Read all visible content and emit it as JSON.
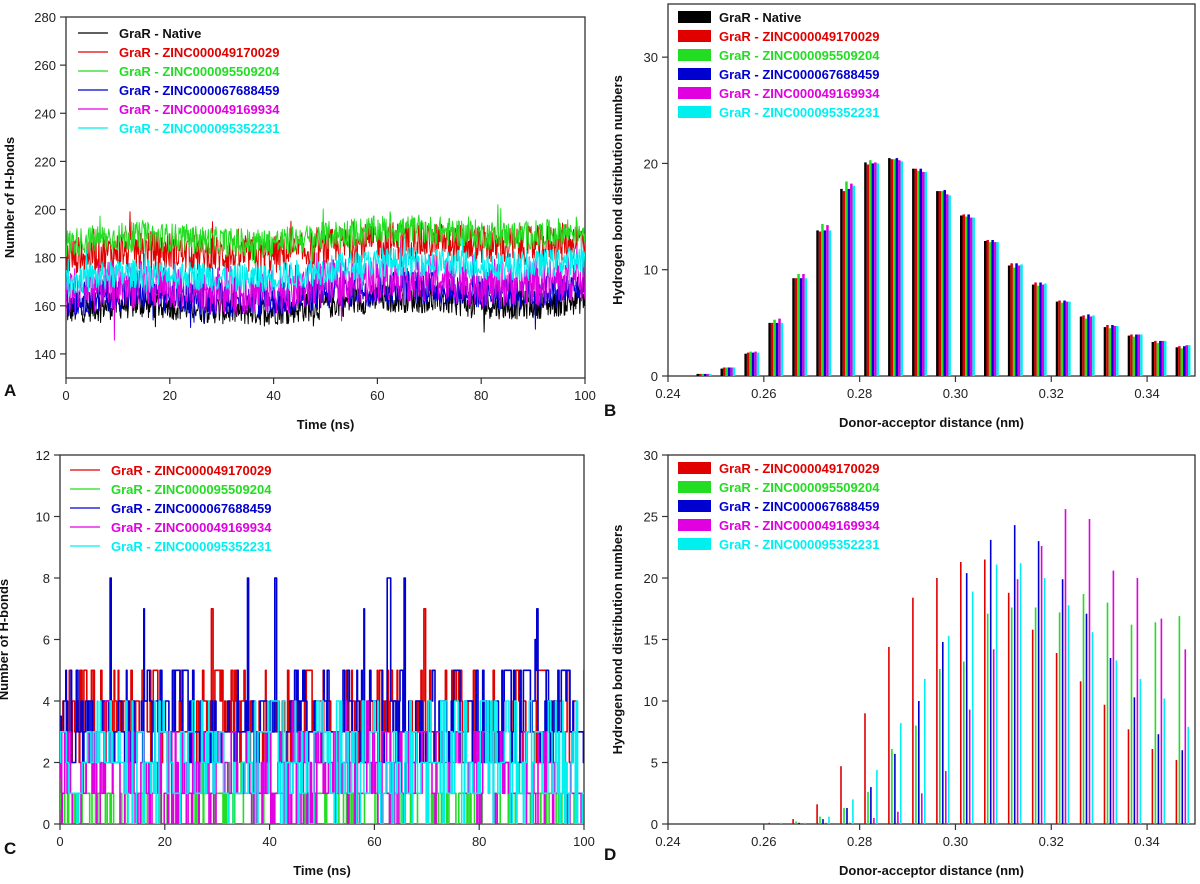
{
  "colors": {
    "Native": "#000000",
    "ZINC000049170029": "#e00000",
    "ZINC000095509204": "#22dd22",
    "ZINC000067688459": "#0000d0",
    "ZINC000049169934": "#e000e0",
    "ZINC000095352231": "#00f0f0"
  },
  "chart_data": [
    {
      "panel": "A",
      "type": "line",
      "title": "",
      "xlabel": "Time (ns)",
      "ylabel": "Number of H-bonds",
      "xlim": [
        0,
        100
      ],
      "ylim": [
        130,
        280
      ],
      "xticks": [
        0,
        20,
        40,
        60,
        80,
        100
      ],
      "yticks": [
        140,
        160,
        180,
        200,
        220,
        240,
        260,
        280
      ],
      "legend_position": "top-left",
      "series": [
        {
          "key": "Native",
          "name": "GraR - Native",
          "mean_start": 158,
          "mean_end": 163,
          "noise": 6
        },
        {
          "key": "ZINC000049170029",
          "name": "GraR - ZINC000049170029",
          "mean_start": 180,
          "mean_end": 188,
          "noise": 8
        },
        {
          "key": "ZINC000095509204",
          "name": "GraR - ZINC000095509204",
          "mean_start": 186,
          "mean_end": 192,
          "noise": 6
        },
        {
          "key": "ZINC000067688459",
          "name": "GraR - ZINC000067688459",
          "mean_start": 162,
          "mean_end": 168,
          "noise": 7
        },
        {
          "key": "ZINC000049169934",
          "name": "GraR - ZINC000049169934",
          "mean_start": 166,
          "mean_end": 172,
          "noise": 10
        },
        {
          "key": "ZINC000095352231",
          "name": "GraR - ZINC000095352231",
          "mean_start": 170,
          "mean_end": 180,
          "noise": 6
        }
      ]
    },
    {
      "panel": "B",
      "type": "bar",
      "title": "",
      "xlabel": "Donor-acceptor distance (nm)",
      "ylabel": "Hydrogen bond distribution numbers",
      "xlim": [
        0.24,
        0.35
      ],
      "ylim": [
        0,
        35
      ],
      "xticks": [
        "0.24",
        "0.26",
        "0.28",
        "0.30",
        "0.32",
        "0.34"
      ],
      "yticks": [
        0,
        10,
        20,
        30
      ],
      "legend_position": "top-left",
      "x": [
        0.2475,
        0.2525,
        0.2575,
        0.2625,
        0.2675,
        0.2725,
        0.2775,
        0.2825,
        0.2875,
        0.2925,
        0.2975,
        0.3025,
        0.3075,
        0.3125,
        0.3175,
        0.3225,
        0.3275,
        0.3325,
        0.3375,
        0.3425,
        0.3475
      ],
      "series": [
        {
          "key": "Native",
          "name": "GraR - Native",
          "values": [
            0.2,
            0.7,
            2.1,
            5.0,
            9.2,
            13.7,
            17.6,
            20.1,
            20.5,
            19.5,
            17.4,
            15.1,
            12.7,
            10.4,
            8.6,
            7.0,
            5.6,
            4.6,
            3.8,
            3.2,
            2.7
          ]
        },
        {
          "key": "ZINC000049170029",
          "name": "GraR - ZINC000049170029",
          "values": [
            0.2,
            0.8,
            2.2,
            5.0,
            9.2,
            13.6,
            17.4,
            19.9,
            20.4,
            19.5,
            17.4,
            15.2,
            12.8,
            10.6,
            8.8,
            7.1,
            5.7,
            4.8,
            3.9,
            3.3,
            2.8
          ]
        },
        {
          "key": "ZINC000095509204",
          "name": "GraR - ZINC000095509204",
          "values": [
            0.2,
            0.8,
            2.3,
            5.3,
            9.6,
            14.3,
            18.3,
            20.3,
            20.4,
            19.3,
            17.4,
            15.0,
            12.6,
            10.2,
            8.5,
            6.9,
            5.4,
            4.5,
            3.7,
            3.1,
            2.6
          ]
        },
        {
          "key": "ZINC000067688459",
          "name": "GraR - ZINC000067688459",
          "values": [
            0.2,
            0.8,
            2.2,
            5.0,
            9.2,
            13.7,
            17.6,
            20.0,
            20.5,
            19.5,
            17.5,
            15.2,
            12.8,
            10.6,
            8.8,
            7.1,
            5.8,
            4.8,
            3.9,
            3.3,
            2.8
          ]
        },
        {
          "key": "ZINC000049169934",
          "name": "GraR - ZINC000049169934",
          "values": [
            0.2,
            0.8,
            2.3,
            5.4,
            9.6,
            14.2,
            18.1,
            20.1,
            20.3,
            19.2,
            17.1,
            14.9,
            12.6,
            10.4,
            8.6,
            7.0,
            5.6,
            4.7,
            3.9,
            3.3,
            2.9
          ]
        },
        {
          "key": "ZINC000095352231",
          "name": "GraR - ZINC000095352231",
          "values": [
            0.2,
            0.8,
            2.2,
            5.0,
            9.2,
            13.7,
            17.9,
            20.0,
            20.2,
            19.2,
            17.0,
            14.9,
            12.6,
            10.5,
            8.7,
            7.0,
            5.7,
            4.7,
            3.9,
            3.3,
            2.9
          ]
        }
      ]
    },
    {
      "panel": "C",
      "type": "line",
      "title": "",
      "xlabel": "Time (ns)",
      "ylabel": "Number of H-bonds",
      "xlim": [
        0,
        100
      ],
      "ylim": [
        0,
        12
      ],
      "xticks": [
        0,
        20,
        40,
        60,
        80,
        100
      ],
      "yticks": [
        0,
        2,
        4,
        6,
        8,
        10,
        12
      ],
      "legend_position": "top-left",
      "series": [
        {
          "key": "ZINC000049170029",
          "name": "GraR - ZINC000049170029",
          "typical_range": [
            2,
            5
          ],
          "max": 7
        },
        {
          "key": "ZINC000095509204",
          "name": "GraR - ZINC000095509204",
          "typical_range": [
            0,
            1
          ],
          "max": 2
        },
        {
          "key": "ZINC000067688459",
          "name": "GraR - ZINC000067688459",
          "typical_range": [
            2,
            5
          ],
          "max": 8
        },
        {
          "key": "ZINC000049169934",
          "name": "GraR - ZINC000049169934",
          "typical_range": [
            0,
            3
          ],
          "max": 4
        },
        {
          "key": "ZINC000095352231",
          "name": "GraR - ZINC000095352231",
          "typical_range": [
            0,
            4
          ],
          "max": 4
        }
      ]
    },
    {
      "panel": "D",
      "type": "bar",
      "title": "",
      "xlabel": "Donor-acceptor distance (nm)",
      "ylabel": "Hydrogen bond distribution numbers",
      "xlim": [
        0.24,
        0.35
      ],
      "ylim": [
        0,
        30
      ],
      "xticks": [
        "0.24",
        "0.26",
        "0.28",
        "0.30",
        "0.32",
        "0.34"
      ],
      "yticks": [
        0,
        5,
        10,
        15,
        20,
        25,
        30
      ],
      "legend_position": "top-left",
      "x": [
        0.2625,
        0.2675,
        0.2725,
        0.2775,
        0.2825,
        0.2875,
        0.2925,
        0.2975,
        0.3025,
        0.3075,
        0.3125,
        0.3175,
        0.3225,
        0.3275,
        0.3325,
        0.3375,
        0.3425,
        0.3475
      ],
      "series": [
        {
          "key": "ZINC000049170029",
          "name": "GraR - ZINC000049170029",
          "values": [
            0.1,
            0.4,
            1.6,
            4.7,
            9.0,
            14.4,
            18.4,
            20.0,
            21.3,
            21.5,
            18.8,
            15.8,
            13.9,
            11.6,
            9.7,
            7.7,
            6.1,
            5.2
          ]
        },
        {
          "key": "ZINC000095509204",
          "name": "GraR - ZINC000095509204",
          "values": [
            0.0,
            0.2,
            0.6,
            1.3,
            2.6,
            6.1,
            8.0,
            12.6,
            13.2,
            17.1,
            17.6,
            17.6,
            17.2,
            18.7,
            18.0,
            16.2,
            16.4,
            16.9
          ]
        },
        {
          "key": "ZINC000067688459",
          "name": "GraR - ZINC000067688459",
          "values": [
            0.0,
            0.1,
            0.4,
            1.3,
            3.0,
            5.7,
            10.0,
            14.8,
            20.4,
            23.1,
            24.3,
            23.0,
            19.9,
            17.1,
            13.5,
            10.3,
            7.3,
            6.0
          ]
        },
        {
          "key": "ZINC000049169934",
          "name": "GraR - ZINC000049169934",
          "values": [
            0.0,
            0.0,
            0.1,
            0.1,
            0.5,
            1.0,
            2.5,
            4.3,
            9.3,
            14.2,
            19.9,
            22.6,
            25.6,
            24.8,
            20.6,
            20.0,
            16.7,
            14.2
          ]
        },
        {
          "key": "ZINC000095352231",
          "name": "GraR - ZINC000095352231",
          "values": [
            0.1,
            0.1,
            0.6,
            2.0,
            4.4,
            8.2,
            11.8,
            15.3,
            18.9,
            21.1,
            21.2,
            20.0,
            17.8,
            15.6,
            13.3,
            11.8,
            10.2,
            7.9
          ]
        }
      ]
    }
  ],
  "panel_letters": [
    "A",
    "B",
    "C",
    "D"
  ]
}
